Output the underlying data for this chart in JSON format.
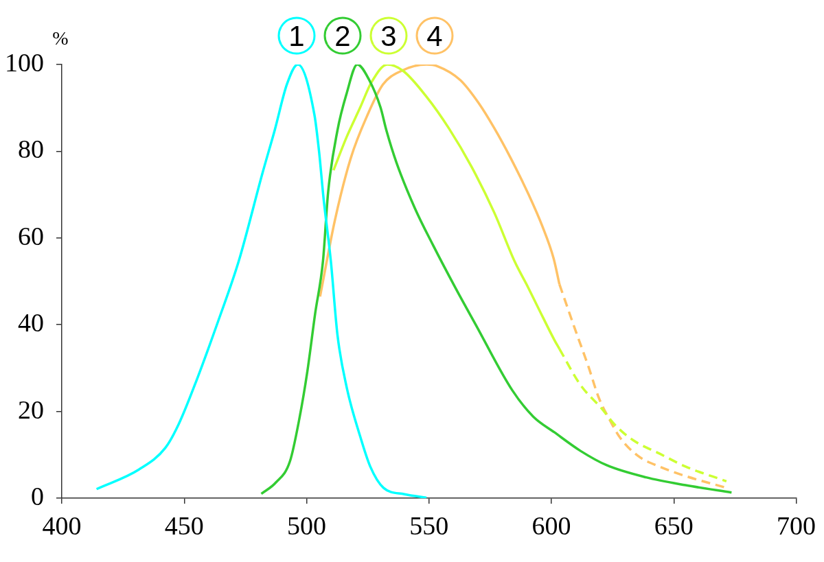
{
  "chart_data": {
    "type": "line",
    "ylabel": "%",
    "xlim": [
      400,
      700
    ],
    "xticks": [
      400,
      450,
      500,
      550,
      600,
      650,
      700
    ],
    "ylim": [
      0,
      100
    ],
    "yticks": [
      0,
      20,
      40,
      60,
      80,
      100
    ],
    "legend": "top",
    "marker": "none",
    "line_style": "solid",
    "series": [
      {
        "name": "1",
        "color": "#00ffff",
        "x": [
          414.2,
          431.5,
          442.3,
          447.7,
          455.2,
          463.8,
          472.3,
          482,
          487,
          492,
          496.4,
          503.2,
          505.1,
          506.9,
          509.9,
          512.6,
          516.4,
          521.7,
          526,
          531.4,
          540,
          549
        ],
        "values": [
          2.1,
          6.6,
          11.6,
          17,
          27.4,
          40.7,
          54.7,
          75,
          84.9,
          95.5,
          100,
          88.4,
          79.9,
          69.3,
          54.7,
          37.7,
          25.5,
          14.6,
          7.3,
          2.4,
          0.9,
          0.1
        ]
      },
      {
        "name": "2",
        "color": "#33cc33",
        "x": [
          481.5,
          487.4,
          493.2,
          497,
          500.3,
          503.5,
          506.7,
          508.8,
          512.6,
          516.3,
          520.7,
          525.6,
          530.2,
          532.6,
          536.7,
          544.2,
          551.6,
          560.9,
          569,
          584,
          592.6,
          601.2,
          611.9,
          622.6,
          638.7,
          654.8,
          673.6
        ],
        "values": [
          1,
          3.6,
          8.5,
          18.2,
          29.2,
          42.6,
          54.7,
          70.6,
          84.8,
          93.2,
          100,
          96.4,
          90.1,
          84.8,
          77.4,
          66.9,
          58.4,
          48.4,
          40.1,
          24.9,
          18.8,
          15.2,
          10.9,
          7.6,
          4.8,
          3,
          1.3
        ]
      },
      {
        "name": "3",
        "color": "#ccff33",
        "x": [
          511,
          516.3,
          521.9,
          526.5,
          533,
          539.5,
          548.8,
          558.1,
          567.4,
          576.7,
          584.9,
          590.4,
          594.7,
          601.2,
          603.3
        ],
        "values": [
          75.6,
          83.2,
          90.1,
          95.9,
          100,
          98.5,
          92.7,
          85.3,
          76.4,
          65.8,
          54.7,
          48.7,
          43.8,
          36.5,
          34.4
        ]
      },
      {
        "color": "#ccff33",
        "line_style": "dashed",
        "x": [
          603.3,
          611.9,
          620.5,
          625.8,
          633.3,
          644.1,
          654.8,
          671.5
        ],
        "values": [
          34.4,
          26.1,
          20.7,
          17,
          13.4,
          10.3,
          7.3,
          3.9
        ]
      },
      {
        "name": "4",
        "color": "#ffc266",
        "x": [
          505.5,
          511.6,
          518.1,
          524.6,
          531.2,
          538.6,
          549,
          553.5,
          562.8,
          570.3,
          576.7,
          583.3,
          590.7,
          596.3,
          600.9,
          603.3
        ],
        "values": [
          46.5,
          64.2,
          78.5,
          88,
          95.4,
          98.5,
          100,
          99.6,
          96.4,
          91.1,
          85.3,
          78.5,
          70,
          62.7,
          55.3,
          49.3
        ]
      },
      {
        "color": "#ffc266",
        "line_style": "dashed",
        "x": [
          603.3,
          609.7,
          615.1,
          619.4,
          623.7,
          628,
          635.5,
          644.1,
          654.8,
          671.5
        ],
        "values": [
          49.3,
          38.9,
          30.4,
          23.1,
          18.2,
          14,
          9.7,
          7.3,
          5.1,
          2.4
        ]
      }
    ]
  }
}
